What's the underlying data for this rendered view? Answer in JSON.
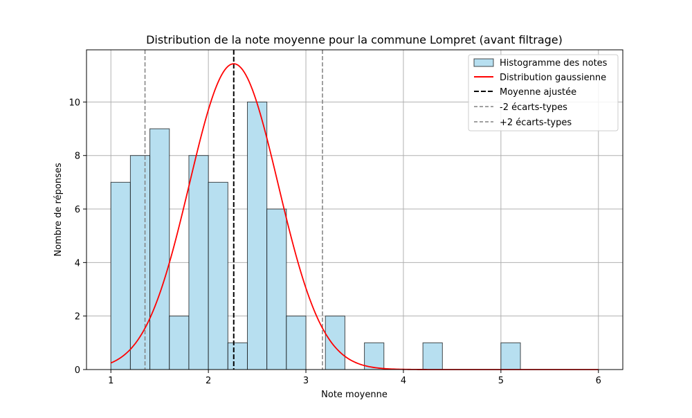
{
  "chart_data": {
    "type": "bar",
    "title": "Distribution de la note moyenne pour la commune Lompret (avant filtrage)",
    "xlabel": "Note moyenne",
    "ylabel": "Nombre de réponses",
    "xlim": [
      0.75,
      6.25
    ],
    "ylim": [
      0,
      11.95
    ],
    "xticks": [
      1,
      2,
      3,
      4,
      5,
      6
    ],
    "yticks": [
      0,
      2,
      4,
      6,
      8,
      10
    ],
    "grid": true,
    "legend_position": "top-right",
    "histogram": {
      "name": "Histogramme des notes",
      "bin_width": 0.2,
      "bins": [
        {
          "x0": 1.0,
          "count": 7
        },
        {
          "x0": 1.2,
          "count": 8
        },
        {
          "x0": 1.4,
          "count": 9
        },
        {
          "x0": 1.6,
          "count": 2
        },
        {
          "x0": 1.8,
          "count": 8
        },
        {
          "x0": 2.0,
          "count": 7
        },
        {
          "x0": 2.2,
          "count": 1
        },
        {
          "x0": 2.4,
          "count": 10
        },
        {
          "x0": 2.6,
          "count": 6
        },
        {
          "x0": 2.8,
          "count": 2
        },
        {
          "x0": 3.0,
          "count": 0
        },
        {
          "x0": 3.2,
          "count": 2
        },
        {
          "x0": 3.4,
          "count": 0
        },
        {
          "x0": 3.6,
          "count": 1
        },
        {
          "x0": 3.8,
          "count": 0
        },
        {
          "x0": 4.0,
          "count": 0
        },
        {
          "x0": 4.2,
          "count": 1
        },
        {
          "x0": 4.4,
          "count": 0
        },
        {
          "x0": 4.6,
          "count": 0
        },
        {
          "x0": 4.8,
          "count": 0
        },
        {
          "x0": 5.0,
          "count": 1
        }
      ],
      "fill_color": "#b7dff0",
      "edge_color": "#000000"
    },
    "gaussian": {
      "name": "Distribution gaussienne",
      "mean": 2.26,
      "sd": 0.455,
      "peak": 11.43,
      "x_range": [
        1,
        6
      ],
      "color": "#ff0000"
    },
    "mean_line": {
      "name": "Moyenne ajustée",
      "x": 2.26,
      "color": "#000000"
    },
    "minus_2sd_line": {
      "name": "-2 écarts-types",
      "x": 1.35,
      "color": "#808080"
    },
    "plus_2sd_line": {
      "name": "+2 écarts-types",
      "x": 3.17,
      "color": "#808080"
    }
  }
}
